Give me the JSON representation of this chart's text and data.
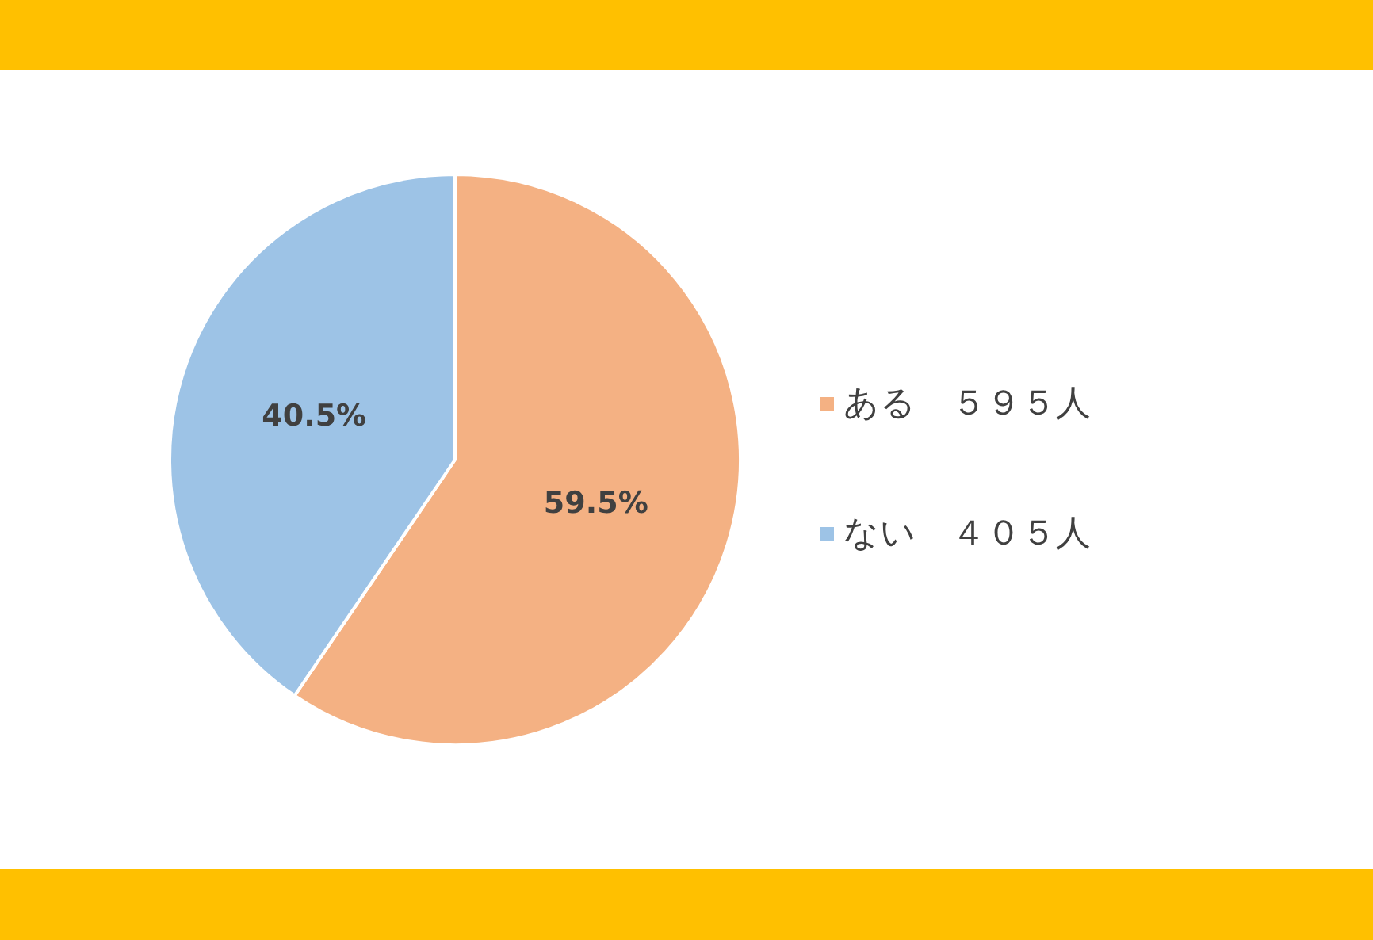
{
  "chart_data": {
    "type": "pie",
    "categories": [
      "ある　５９５人",
      "ない　４０５人"
    ],
    "values": [
      59.5,
      40.5
    ],
    "colors": [
      "#f4b183",
      "#9dc3e6"
    ],
    "value_labels": [
      "59.5%",
      "40.5%"
    ],
    "legend": "right"
  }
}
